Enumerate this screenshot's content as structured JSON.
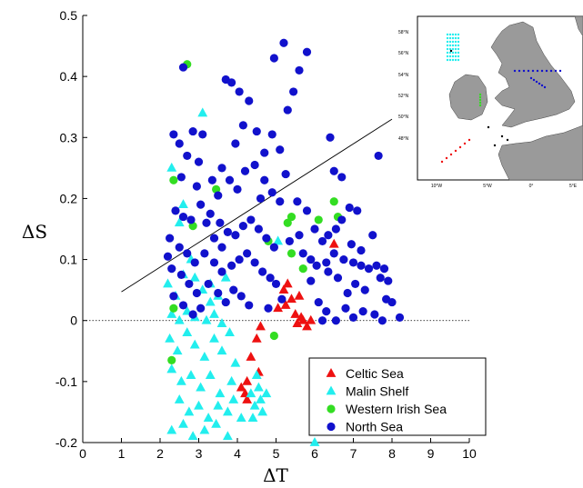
{
  "chart_data": {
    "type": "scatter",
    "xlabel": "ΔT",
    "ylabel": "ΔS",
    "xlim": [
      0,
      10
    ],
    "ylim": [
      -0.2,
      0.5
    ],
    "x_ticks": [
      "0",
      "1",
      "2",
      "3",
      "4",
      "5",
      "6",
      "7",
      "8",
      "9",
      "10"
    ],
    "y_ticks": [
      "-0.2",
      "-0.1",
      "0",
      "0.1",
      "0.2",
      "0.3",
      "0.4",
      "0.5"
    ],
    "grid": false,
    "legend_position": "bottom-right",
    "zero_line": {
      "y": 0,
      "style": "dotted"
    },
    "reference_line": {
      "x": [
        1,
        8
      ],
      "y": [
        0.047,
        0.33
      ]
    },
    "series": [
      {
        "name": "Celtic Sea",
        "marker": "triangle",
        "color": "#ee1111",
        "points": [
          [
            4.1,
            -0.11
          ],
          [
            4.25,
            -0.13
          ],
          [
            4.2,
            -0.12
          ],
          [
            4.25,
            -0.1
          ],
          [
            4.5,
            -0.03
          ],
          [
            4.35,
            -0.06
          ],
          [
            4.6,
            -0.01
          ],
          [
            4.55,
            -0.085
          ],
          [
            5.05,
            0.02
          ],
          [
            5.2,
            0.05
          ],
          [
            5.3,
            0.06
          ],
          [
            5.4,
            0.035
          ],
          [
            5.5,
            0.01
          ],
          [
            5.6,
            0.04
          ],
          [
            5.7,
            0.0
          ],
          [
            5.8,
            -0.01
          ],
          [
            5.55,
            -0.005
          ],
          [
            5.65,
            0.005
          ],
          [
            5.9,
            0.0
          ],
          [
            6.5,
            0.125
          ],
          [
            5.25,
            0.025
          ]
        ]
      },
      {
        "name": "Malin Shelf",
        "marker": "triangle",
        "color": "#22eeee",
        "points": [
          [
            2.3,
            0.25
          ],
          [
            2.5,
            0.16
          ],
          [
            2.6,
            0.19
          ],
          [
            3.1,
            0.34
          ],
          [
            2.8,
            0.1
          ],
          [
            2.2,
            0.06
          ],
          [
            2.4,
            0.04
          ],
          [
            2.6,
            0.075
          ],
          [
            2.9,
            0.07
          ],
          [
            3.1,
            0.05
          ],
          [
            3.3,
            0.06
          ],
          [
            3.5,
            0.04
          ],
          [
            3.7,
            0.07
          ],
          [
            2.3,
            0.01
          ],
          [
            2.5,
            0.0
          ],
          [
            2.7,
            0.015
          ],
          [
            2.9,
            0.005
          ],
          [
            3.2,
            0.0
          ],
          [
            3.4,
            0.01
          ],
          [
            3.6,
            -0.005
          ],
          [
            2.25,
            -0.03
          ],
          [
            2.45,
            -0.05
          ],
          [
            2.7,
            -0.02
          ],
          [
            2.9,
            -0.04
          ],
          [
            3.15,
            -0.06
          ],
          [
            3.4,
            -0.03
          ],
          [
            3.6,
            -0.05
          ],
          [
            3.8,
            -0.02
          ],
          [
            2.3,
            -0.08
          ],
          [
            2.55,
            -0.1
          ],
          [
            2.8,
            -0.09
          ],
          [
            3.05,
            -0.11
          ],
          [
            3.3,
            -0.09
          ],
          [
            3.55,
            -0.12
          ],
          [
            3.85,
            -0.1
          ],
          [
            2.5,
            -0.13
          ],
          [
            2.75,
            -0.15
          ],
          [
            3.0,
            -0.14
          ],
          [
            3.25,
            -0.16
          ],
          [
            3.5,
            -0.14
          ],
          [
            3.75,
            -0.15
          ],
          [
            3.9,
            -0.13
          ],
          [
            2.3,
            -0.18
          ],
          [
            2.6,
            -0.17
          ],
          [
            2.85,
            -0.19
          ],
          [
            3.15,
            -0.18
          ],
          [
            3.45,
            -0.17
          ],
          [
            3.75,
            -0.19
          ],
          [
            4.35,
            -0.12
          ],
          [
            4.45,
            -0.14
          ],
          [
            4.55,
            -0.11
          ],
          [
            4.65,
            -0.15
          ],
          [
            4.4,
            -0.16
          ],
          [
            4.6,
            -0.13
          ],
          [
            4.75,
            -0.12
          ],
          [
            4.5,
            -0.09
          ],
          [
            6.0,
            -0.2
          ],
          [
            4.1,
            -0.16
          ],
          [
            3.95,
            -0.07
          ],
          [
            5.05,
            0.13
          ],
          [
            3.3,
            0.03
          ]
        ]
      },
      {
        "name": "Western Irish Sea",
        "marker": "circle",
        "color": "#33dd22",
        "points": [
          [
            2.7,
            0.42
          ],
          [
            2.35,
            0.23
          ],
          [
            2.85,
            0.155
          ],
          [
            3.45,
            0.215
          ],
          [
            2.35,
            0.02
          ],
          [
            2.3,
            -0.065
          ],
          [
            5.4,
            0.17
          ],
          [
            5.3,
            0.16
          ],
          [
            6.1,
            0.165
          ],
          [
            6.5,
            0.195
          ],
          [
            6.6,
            0.17
          ],
          [
            4.95,
            -0.025
          ],
          [
            5.4,
            0.11
          ],
          [
            4.8,
            0.13
          ],
          [
            5.7,
            0.085
          ]
        ]
      },
      {
        "name": "North Sea",
        "marker": "circle",
        "color": "#1111cc",
        "points": [
          [
            2.6,
            0.415
          ],
          [
            2.85,
            0.31
          ],
          [
            3.1,
            0.305
          ],
          [
            2.35,
            0.305
          ],
          [
            2.5,
            0.29
          ],
          [
            2.7,
            0.27
          ],
          [
            3.0,
            0.26
          ],
          [
            3.35,
            0.23
          ],
          [
            3.7,
            0.395
          ],
          [
            3.85,
            0.39
          ],
          [
            4.05,
            0.375
          ],
          [
            4.3,
            0.36
          ],
          [
            4.5,
            0.31
          ],
          [
            4.7,
            0.275
          ],
          [
            4.9,
            0.305
          ],
          [
            5.1,
            0.28
          ],
          [
            5.3,
            0.345
          ],
          [
            5.45,
            0.375
          ],
          [
            5.6,
            0.41
          ],
          [
            5.8,
            0.44
          ],
          [
            5.2,
            0.455
          ],
          [
            4.95,
            0.43
          ],
          [
            4.15,
            0.32
          ],
          [
            3.95,
            0.29
          ],
          [
            3.6,
            0.25
          ],
          [
            3.8,
            0.23
          ],
          [
            4.0,
            0.215
          ],
          [
            4.2,
            0.245
          ],
          [
            4.45,
            0.255
          ],
          [
            4.7,
            0.23
          ],
          [
            4.9,
            0.21
          ],
          [
            5.1,
            0.195
          ],
          [
            2.4,
            0.18
          ],
          [
            2.6,
            0.17
          ],
          [
            2.8,
            0.165
          ],
          [
            3.05,
            0.19
          ],
          [
            3.3,
            0.175
          ],
          [
            3.55,
            0.16
          ],
          [
            3.75,
            0.145
          ],
          [
            3.95,
            0.14
          ],
          [
            4.15,
            0.155
          ],
          [
            4.35,
            0.165
          ],
          [
            4.55,
            0.15
          ],
          [
            4.75,
            0.135
          ],
          [
            4.95,
            0.12
          ],
          [
            2.25,
            0.135
          ],
          [
            2.5,
            0.12
          ],
          [
            2.7,
            0.11
          ],
          [
            2.9,
            0.095
          ],
          [
            3.15,
            0.11
          ],
          [
            3.4,
            0.095
          ],
          [
            3.6,
            0.08
          ],
          [
            3.85,
            0.09
          ],
          [
            4.05,
            0.1
          ],
          [
            4.25,
            0.11
          ],
          [
            4.45,
            0.095
          ],
          [
            4.65,
            0.08
          ],
          [
            4.85,
            0.07
          ],
          [
            2.3,
            0.085
          ],
          [
            2.55,
            0.075
          ],
          [
            2.75,
            0.06
          ],
          [
            2.95,
            0.045
          ],
          [
            3.25,
            0.06
          ],
          [
            3.5,
            0.045
          ],
          [
            3.7,
            0.03
          ],
          [
            3.9,
            0.05
          ],
          [
            4.1,
            0.04
          ],
          [
            4.3,
            0.025
          ],
          [
            2.35,
            0.04
          ],
          [
            2.6,
            0.025
          ],
          [
            2.85,
            0.01
          ],
          [
            3.05,
            0.02
          ],
          [
            2.2,
            0.105
          ],
          [
            3.4,
            0.135
          ],
          [
            3.6,
            0.12
          ],
          [
            3.2,
            0.16
          ],
          [
            3.5,
            0.205
          ],
          [
            2.95,
            0.22
          ],
          [
            2.55,
            0.235
          ],
          [
            4.6,
            0.2
          ],
          [
            5.25,
            0.24
          ],
          [
            5.55,
            0.195
          ],
          [
            5.8,
            0.18
          ],
          [
            6.0,
            0.15
          ],
          [
            6.2,
            0.13
          ],
          [
            6.35,
            0.14
          ],
          [
            6.55,
            0.15
          ],
          [
            6.7,
            0.165
          ],
          [
            5.6,
            0.14
          ],
          [
            5.35,
            0.13
          ],
          [
            5.7,
            0.11
          ],
          [
            5.9,
            0.1
          ],
          [
            6.05,
            0.09
          ],
          [
            6.3,
            0.095
          ],
          [
            6.5,
            0.11
          ],
          [
            6.75,
            0.1
          ],
          [
            7.0,
            0.095
          ],
          [
            7.2,
            0.09
          ],
          [
            7.4,
            0.085
          ],
          [
            7.6,
            0.09
          ],
          [
            7.8,
            0.085
          ],
          [
            7.5,
            0.14
          ],
          [
            7.7,
            0.07
          ],
          [
            7.9,
            0.065
          ],
          [
            8.0,
            0.03
          ],
          [
            7.85,
            0.035
          ],
          [
            7.3,
            0.05
          ],
          [
            7.05,
            0.06
          ],
          [
            6.85,
            0.045
          ],
          [
            6.6,
            0.07
          ],
          [
            6.35,
            0.08
          ],
          [
            5.9,
            0.065
          ],
          [
            6.1,
            0.03
          ],
          [
            6.3,
            0.015
          ],
          [
            6.55,
            0.0
          ],
          [
            6.8,
            0.02
          ],
          [
            7.0,
            0.005
          ],
          [
            7.25,
            0.015
          ],
          [
            7.55,
            0.01
          ],
          [
            7.75,
            0.0
          ],
          [
            8.2,
            0.005
          ],
          [
            6.2,
            0.0
          ],
          [
            7.1,
            0.18
          ],
          [
            6.9,
            0.185
          ],
          [
            6.4,
            0.3
          ],
          [
            6.5,
            0.245
          ],
          [
            6.7,
            0.235
          ],
          [
            7.65,
            0.27
          ],
          [
            6.95,
            0.125
          ],
          [
            7.2,
            0.115
          ],
          [
            5.0,
            0.06
          ],
          [
            4.8,
            0.02
          ],
          [
            5.15,
            0.035
          ]
        ]
      }
    ]
  },
  "inset_map": {
    "lat_labels": [
      "58°N",
      "56°N",
      "54°N",
      "52°N",
      "50°N",
      "48°N"
    ],
    "lon_labels": [
      "10°W",
      "5°W",
      "0°",
      "5°E"
    ],
    "land_color": "#9a9a9a"
  }
}
